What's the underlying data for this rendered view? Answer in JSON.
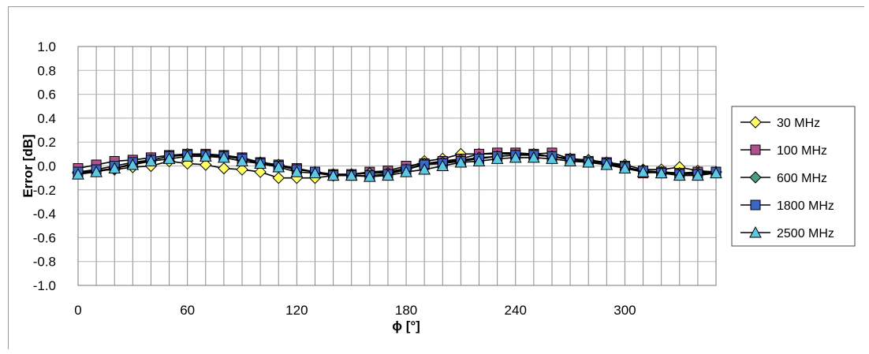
{
  "chart_data": {
    "type": "line",
    "xlabel": "ϕ [°]",
    "ylabel": "Error [dB]",
    "xlim": [
      0,
      350
    ],
    "ylim": [
      -1.0,
      1.0
    ],
    "x_ticks": [
      "0",
      "60",
      "120",
      "180",
      "240",
      "300"
    ],
    "x_tick_values": [
      0,
      60,
      120,
      180,
      240,
      300
    ],
    "y_ticks": [
      "1.0",
      "0.8",
      "0.6",
      "0.4",
      "0.2",
      "0.0",
      "-0.2",
      "-0.4",
      "-0.6",
      "-0.8",
      "-1.0"
    ],
    "y_tick_values": [
      1.0,
      0.8,
      0.6,
      0.4,
      0.2,
      0.0,
      -0.2,
      -0.4,
      -0.6,
      -0.8,
      -1.0
    ],
    "grid": "vertical every 10, horizontal every 0.2",
    "legend_position": "right",
    "x": [
      0,
      10,
      20,
      30,
      40,
      50,
      60,
      70,
      80,
      90,
      100,
      110,
      120,
      130,
      140,
      150,
      160,
      170,
      180,
      190,
      200,
      210,
      220,
      230,
      240,
      250,
      260,
      270,
      280,
      290,
      300,
      310,
      320,
      330,
      340,
      350
    ],
    "series": [
      {
        "name": "30 MHz",
        "marker": "diamond",
        "color": "#ffff66",
        "values": [
          -0.05,
          -0.04,
          -0.03,
          -0.01,
          0.0,
          0.04,
          0.02,
          0.01,
          -0.02,
          -0.03,
          -0.05,
          -0.1,
          -0.1,
          -0.1,
          -0.08,
          -0.07,
          -0.06,
          -0.05,
          -0.02,
          0.04,
          0.06,
          0.1,
          0.1,
          0.1,
          0.1,
          0.09,
          0.08,
          0.06,
          0.05,
          0.03,
          0.01,
          -0.03,
          -0.03,
          -0.01,
          -0.04,
          -0.05
        ]
      },
      {
        "name": "100 MHz",
        "marker": "square",
        "color": "#b0508c",
        "values": [
          -0.02,
          0.01,
          0.04,
          0.05,
          0.07,
          0.09,
          0.1,
          0.1,
          0.09,
          0.07,
          0.03,
          0.01,
          -0.02,
          -0.05,
          -0.07,
          -0.07,
          -0.05,
          -0.04,
          0.0,
          0.02,
          0.04,
          0.06,
          0.1,
          0.11,
          0.11,
          0.1,
          0.11,
          0.06,
          0.04,
          0.03,
          0.0,
          -0.06,
          -0.05,
          -0.06,
          -0.05,
          -0.05
        ]
      },
      {
        "name": "600 MHz",
        "marker": "diamond",
        "color": "#48a07c",
        "values": [
          -0.06,
          -0.04,
          -0.02,
          0.02,
          0.05,
          0.08,
          0.1,
          0.09,
          0.08,
          0.06,
          0.03,
          0.01,
          -0.03,
          -0.05,
          -0.07,
          -0.07,
          -0.06,
          -0.06,
          -0.03,
          0.02,
          0.03,
          0.05,
          0.07,
          0.08,
          0.09,
          0.1,
          0.08,
          0.06,
          0.05,
          0.03,
          -0.01,
          -0.04,
          -0.05,
          -0.06,
          -0.06,
          -0.05
        ]
      },
      {
        "name": "1800 MHz",
        "marker": "square",
        "color": "#3a66c8",
        "values": [
          -0.05,
          -0.03,
          0.0,
          0.03,
          0.05,
          0.08,
          0.09,
          0.09,
          0.08,
          0.06,
          0.02,
          0.0,
          -0.03,
          -0.05,
          -0.08,
          -0.08,
          -0.08,
          -0.07,
          -0.03,
          0.01,
          0.02,
          0.04,
          0.06,
          0.08,
          0.09,
          0.09,
          0.08,
          0.05,
          0.03,
          0.02,
          -0.01,
          -0.04,
          -0.06,
          -0.07,
          -0.07,
          -0.05
        ]
      },
      {
        "name": "2500 MHz",
        "marker": "triangle",
        "color": "#5ec8e4",
        "values": [
          -0.07,
          -0.05,
          -0.02,
          0.01,
          0.04,
          0.06,
          0.08,
          0.08,
          0.07,
          0.04,
          0.02,
          -0.01,
          -0.05,
          -0.06,
          -0.08,
          -0.08,
          -0.09,
          -0.08,
          -0.05,
          -0.03,
          0.0,
          0.03,
          0.04,
          0.06,
          0.07,
          0.07,
          0.06,
          0.04,
          0.03,
          0.01,
          -0.02,
          -0.05,
          -0.06,
          -0.08,
          -0.08,
          -0.06
        ]
      }
    ]
  }
}
